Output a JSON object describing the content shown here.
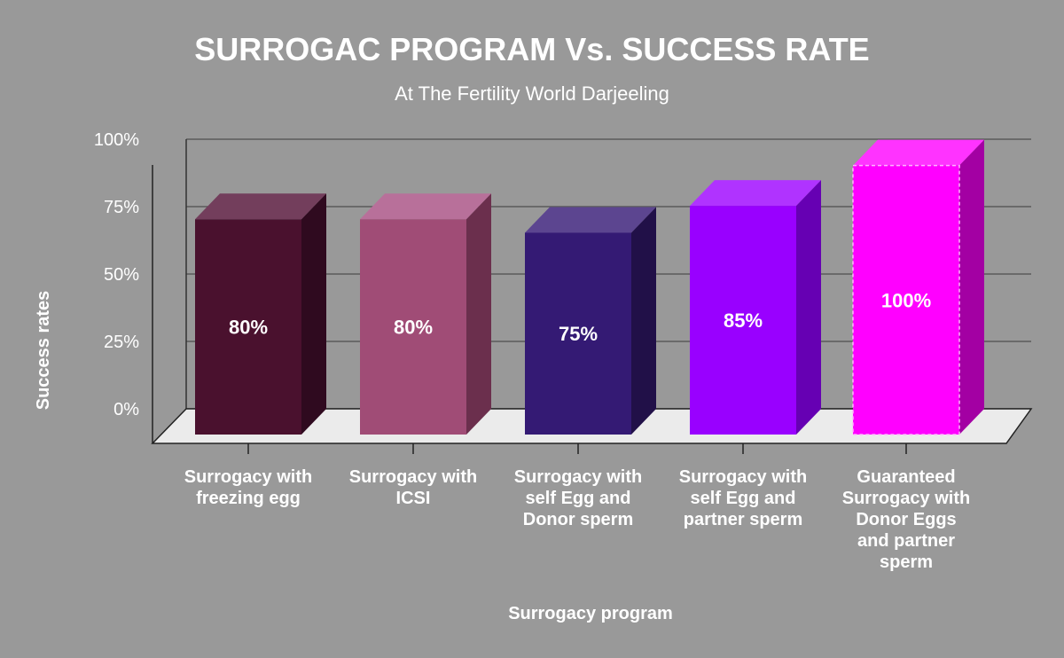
{
  "chart_data": {
    "type": "bar",
    "title": "SURROGAC PROGRAM Vs. SUCCESS RATE",
    "subtitle": "At The Fertility World Darjeeling",
    "xlabel": "Surrogacy program",
    "ylabel": "Success rates",
    "yticks": [
      "0%",
      "25%",
      "50%",
      "75%",
      "100%"
    ],
    "ylim": [
      0,
      100
    ],
    "grid": true,
    "categories": [
      [
        "Surrogacy with",
        "freezing egg"
      ],
      [
        "Surrogacy with",
        "ICSI"
      ],
      [
        "Surrogacy with",
        "self Egg and",
        "Donor sperm"
      ],
      [
        "Surrogacy with",
        "self Egg and",
        "partner sperm"
      ],
      [
        "Guaranteed",
        "Surrogacy with",
        "Donor Eggs",
        "and partner",
        "sperm"
      ]
    ],
    "values": [
      80,
      80,
      75,
      85,
      100
    ],
    "data_labels": [
      "80%",
      "80%",
      "75%",
      "85%",
      "100%"
    ],
    "bar_colors": [
      {
        "front": "#4a112e",
        "top": "#733e5c",
        "side": "#2f0a1f"
      },
      {
        "front": "#a04c76",
        "top": "#b8709a",
        "side": "#6b2f4d"
      },
      {
        "front": "#341a74",
        "top": "#5c4590",
        "side": "#211048"
      },
      {
        "front": "#9900ff",
        "top": "#b033ff",
        "side": "#6600b3"
      },
      {
        "front": "#ff00ff",
        "top": "#ff33ff",
        "side": "#a300a3"
      }
    ]
  }
}
